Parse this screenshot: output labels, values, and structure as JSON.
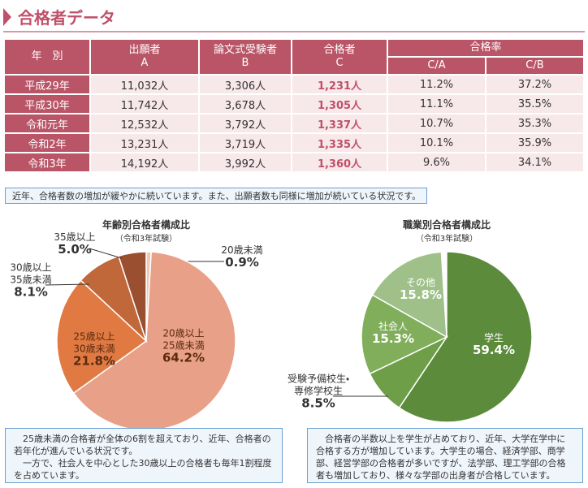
{
  "header": {
    "title": "合格者データ"
  },
  "table": {
    "columns": [
      "年　別",
      "出願者\nA",
      "論文式受験者\nB",
      "合格者\nC",
      "合格率",
      "C/A",
      "C/B"
    ],
    "rows": [
      [
        "平成29年",
        "11,032人",
        "3,306人",
        "1,231人",
        "11.2%",
        "37.2%"
      ],
      [
        "平成30年",
        "11,742人",
        "3,678人",
        "1,305人",
        "11.1%",
        "35.5%"
      ],
      [
        "令和元年",
        "12,532人",
        "3,792人",
        "1,337人",
        "10.7%",
        "35.3%"
      ],
      [
        "令和2年",
        "13,231人",
        "3,719人",
        "1,335人",
        "10.1%",
        "35.9%"
      ],
      [
        "令和3年",
        "14,192人",
        "3,992人",
        "1,360人",
        "9.6%",
        "34.1%"
      ]
    ]
  },
  "note": "近年、合格者数の増加が緩やかに続いています。また、出願者数も同様に増加が続いている状況です。",
  "chart_data": [
    {
      "type": "pie",
      "title": "年齢別合格者構成比",
      "subtitle": "（令和3年試験）",
      "categories": [
        "20歳未満",
        "20歳以上\n25歳未満",
        "25歳以上\n30歳未満",
        "30歳以上\n35歳未満",
        "35歳以上"
      ],
      "values": [
        0.9,
        64.2,
        21.8,
        8.1,
        5.0
      ],
      "value_labels": [
        "0.9%",
        "64.2%",
        "21.8%",
        "8.1%",
        "5.0%"
      ],
      "colors": [
        "#f2c6b8",
        "#e9a088",
        "#e07a42",
        "#c0683a",
        "#9a5030"
      ]
    },
    {
      "type": "pie",
      "title": "職業別合格者構成比",
      "subtitle": "（令和3年試験）",
      "categories": [
        "学生",
        "受験予備校生・\n専修学校生",
        "社会人",
        "その他"
      ],
      "values": [
        59.4,
        8.5,
        15.3,
        15.8
      ],
      "value_labels": [
        "59.4%",
        "8.5%",
        "15.3%",
        "15.8%"
      ],
      "colors": [
        "#5b8b3b",
        "#6e9e48",
        "#80ae5b",
        "#9fc189"
      ]
    }
  ],
  "comments": [
    [
      "　25歳未満の合格者が全体の6割を超えており、近年、合格者の若年化が進んでいる状況です。",
      "　一方で、社会人を中心とした30歳以上の合格者も毎年1割程度を占めています。"
    ],
    [
      "　合格者の半数以上を学生が占めており、近年、大学在学中に合格する方が増加しています。大学生の場合、経済学部、商学部、経営学部の合格者が多いですが、法学部、理工学部の合格者も増加しており、様々な学部の出身者が合格しています。"
    ]
  ]
}
